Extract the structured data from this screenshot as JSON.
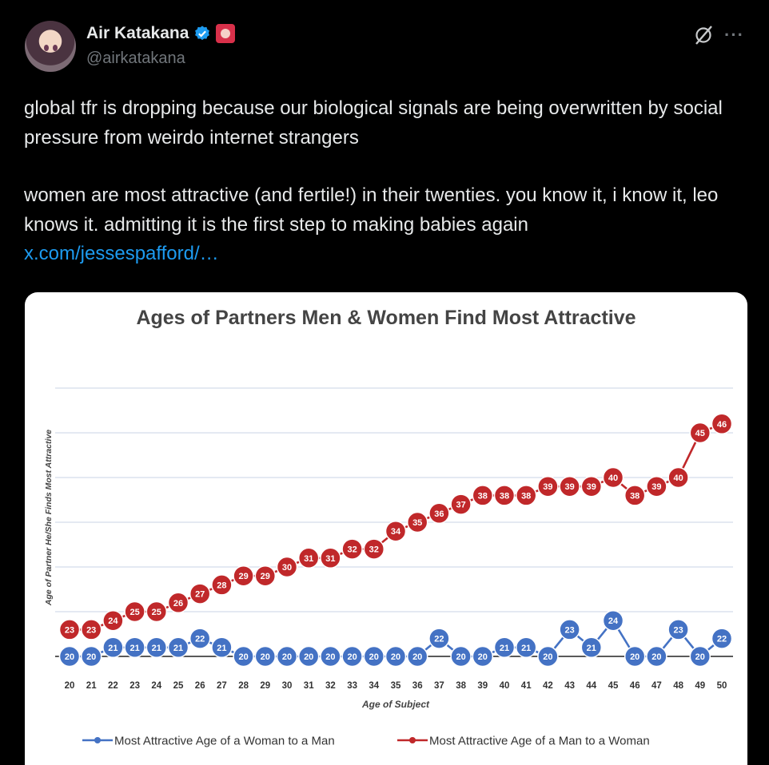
{
  "author": {
    "display_name": "Air Katakana",
    "handle": "@airkatakana",
    "verified_icon": "verified-badge-icon",
    "emoji_icon": "anime-girl-emoji-icon",
    "avatar_icon": "anime-girl-avatar-icon"
  },
  "actions": {
    "grok_icon": "grok-icon",
    "more_icon": "more-options-icon",
    "more_label": "···"
  },
  "tweet": {
    "paragraph1": "global tfr is dropping because our biological signals are being overwritten by social pressure from weirdo internet strangers",
    "paragraph2": "women are most attractive (and fertile!) in their twenties. you know it, i know it, leo knows it. admitting it is the first step to making babies again",
    "link": "x.com/jessespafford/…"
  },
  "colors": {
    "link": "#1d9bf0",
    "blue_series": "#4472c4",
    "red_series": "#c0282a"
  },
  "chart_data": {
    "type": "line",
    "title": "Ages of Partners Men & Women Find Most Attractive",
    "xlabel": "Age of Subject",
    "ylabel": "Age of Partner He/She Finds Most Attractive",
    "x": [
      20,
      21,
      22,
      23,
      24,
      25,
      26,
      27,
      28,
      29,
      30,
      31,
      32,
      33,
      34,
      35,
      36,
      37,
      38,
      39,
      40,
      41,
      42,
      43,
      44,
      45,
      46,
      47,
      48,
      49,
      50
    ],
    "ylim": [
      20,
      50
    ],
    "grid": true,
    "legend_position": "bottom",
    "series": [
      {
        "name": "Most Attractive Age of a Woman to a Man",
        "color": "#4472c4",
        "values": [
          20,
          20,
          21,
          21,
          21,
          21,
          22,
          21,
          20,
          20,
          20,
          20,
          20,
          20,
          20,
          20,
          20,
          22,
          20,
          20,
          21,
          21,
          20,
          23,
          21,
          24,
          20,
          20,
          23,
          20,
          22
        ]
      },
      {
        "name": "Most Attractive Age of a Man to a Woman",
        "color": "#c0282a",
        "values": [
          23,
          23,
          24,
          25,
          25,
          26,
          27,
          28,
          29,
          29,
          30,
          31,
          31,
          32,
          32,
          34,
          35,
          36,
          37,
          38,
          38,
          38,
          39,
          39,
          39,
          40,
          38,
          39,
          40,
          45,
          46
        ]
      }
    ]
  }
}
